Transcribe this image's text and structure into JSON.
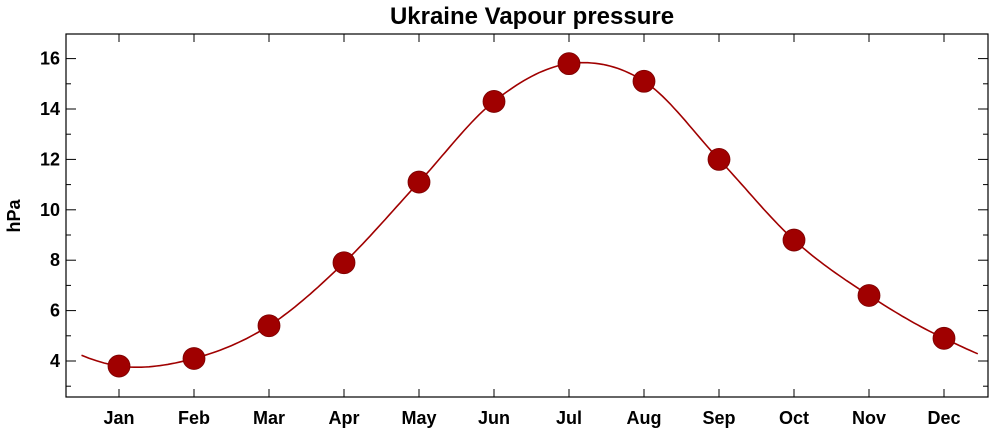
{
  "chart_data": {
    "type": "line",
    "title": "Ukraine Vapour pressure",
    "xlabel": "",
    "ylabel": "hPa",
    "categories": [
      "Jan",
      "Feb",
      "Mar",
      "Apr",
      "May",
      "Jun",
      "Jul",
      "Aug",
      "Sep",
      "Oct",
      "Nov",
      "Dec"
    ],
    "series": [
      {
        "values": [
          3.8,
          4.1,
          5.4,
          7.9,
          11.1,
          14.3,
          15.8,
          15.1,
          12.0,
          8.8,
          6.6,
          4.9
        ]
      }
    ],
    "ylim": [
      2.5,
      17
    ],
    "yticks": [
      4,
      6,
      8,
      10,
      12,
      14,
      16
    ],
    "yticks_labels": [
      "4",
      "6",
      "8",
      "10",
      "12",
      "14",
      "16"
    ],
    "grid": false,
    "colors": {
      "series": "#a00000",
      "axis": "#000000"
    }
  }
}
